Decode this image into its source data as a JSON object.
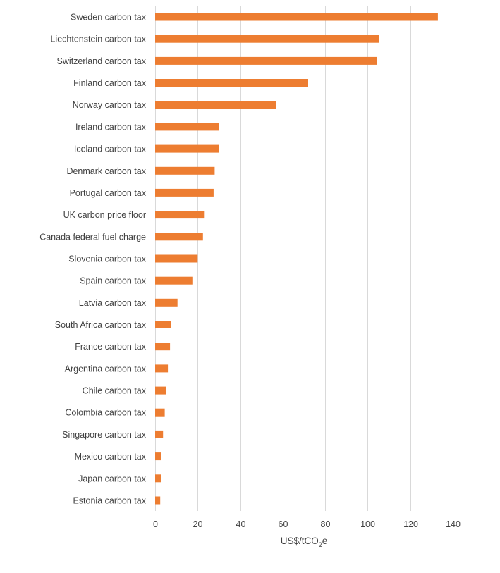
{
  "chart_data": {
    "type": "bar",
    "orientation": "horizontal",
    "categories": [
      "Sweden carbon tax",
      "Liechtenstein carbon tax",
      "Switzerland carbon tax",
      "Finland carbon tax",
      "Norway carbon tax",
      "Ireland carbon tax",
      "Iceland carbon tax",
      "Denmark carbon tax",
      "Portugal carbon tax",
      "UK carbon price floor",
      "Canada federal fuel charge",
      "Slovenia carbon tax",
      "Spain carbon tax",
      "Latvia carbon tax",
      "South Africa carbon tax",
      "France carbon tax",
      "Argentina carbon tax",
      "Chile carbon tax",
      "Colombia carbon tax",
      "Singapore carbon tax",
      "Mexico carbon tax",
      "Japan carbon tax",
      "Estonia carbon tax"
    ],
    "values": [
      133,
      105.5,
      104.5,
      72,
      57,
      30,
      30,
      28,
      27.5,
      23,
      22.5,
      20,
      17.5,
      10.5,
      7.3,
      7,
      6,
      5,
      4.5,
      3.7,
      3,
      3,
      2.4
    ],
    "xlabel": "US$/tCO",
    "xlabel_sub": "2",
    "xlabel_suffix": "e",
    "ticks": [
      "0",
      "20",
      "40",
      "60",
      "80",
      "100",
      "120",
      "140"
    ],
    "xlim": [
      0,
      140
    ],
    "grid": true,
    "legend": "none",
    "bar_color": "#ed7d31",
    "grid_color": "#d9d9d9",
    "text_color": "#404040"
  }
}
